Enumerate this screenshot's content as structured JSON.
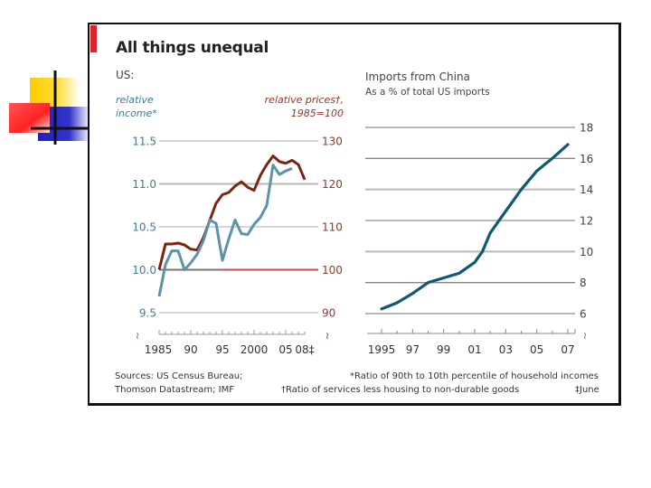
{
  "header": {
    "title": "All things unequal"
  },
  "left_panel": {
    "region_label": "US:",
    "left_axis_title_line1": "relative",
    "left_axis_title_line2": "income*",
    "right_axis_title_line1": "relative prices†,",
    "right_axis_title_line2": "1985=100"
  },
  "right_panel": {
    "title": "Imports from China",
    "subtitle": "As a % of total US imports"
  },
  "footer": {
    "sources_line1": "Sources: US Census Bureau;",
    "sources_line2": "Thomson Datastream; IMF",
    "note1": "*Ratio of 90th to 10th percentile of household incomes",
    "note2": "†Ratio of services less housing to non-durable goods",
    "note3": "‡June"
  },
  "colors": {
    "income": "#5b93a8",
    "prices": "#7a2514",
    "imports": "#0e5a72",
    "baseline_red": "#d9444c",
    "brand_red": "#e0202a"
  },
  "chart_data": [
    {
      "type": "line",
      "title": "US: relative income and relative prices",
      "xlabel": "",
      "x_ticks": [
        "1985",
        "90",
        "95",
        "2000",
        "05",
        "08‡"
      ],
      "x_tick_years": [
        1985,
        1990,
        1995,
        2000,
        2005,
        2008
      ],
      "xlim": [
        1985,
        2008
      ],
      "y_left": {
        "label": "relative income*",
        "ticks": [
          "9.5",
          "10.0",
          "10.5",
          "11.0",
          "11.5"
        ],
        "lim": [
          9.5,
          11.5
        ]
      },
      "y_right": {
        "label": "relative prices†, 1985=100",
        "ticks": [
          "90",
          "100",
          "110",
          "120",
          "130"
        ],
        "lim": [
          90,
          130
        ]
      },
      "grid": true,
      "reference_line": {
        "axis": "right",
        "value": 100,
        "from_year": 1995,
        "to_year": 2008
      },
      "series": [
        {
          "name": "relative income*",
          "axis": "left",
          "x": [
            1985,
            1986,
            1987,
            1988,
            1989,
            1990,
            1991,
            1992,
            1993,
            1994,
            1995,
            1996,
            1997,
            1998,
            1999,
            2000,
            2001,
            2002,
            2003,
            2004,
            2005,
            2006
          ],
          "values": [
            9.69,
            10.06,
            10.22,
            10.22,
            10.0,
            10.08,
            10.18,
            10.34,
            10.58,
            10.54,
            10.11,
            10.36,
            10.58,
            10.42,
            10.41,
            10.53,
            10.61,
            10.75,
            11.22,
            11.11,
            11.15,
            11.18
          ]
        },
        {
          "name": "relative prices†",
          "axis": "right",
          "x": [
            1985,
            1986,
            1987,
            1988,
            1989,
            1990,
            1991,
            1992,
            1993,
            1994,
            1995,
            1996,
            1997,
            1998,
            1999,
            2000,
            2001,
            2002,
            2003,
            2004,
            2005,
            2006,
            2007,
            2008
          ],
          "values": [
            100,
            106,
            106,
            106.2,
            105.8,
            104.8,
            104.6,
            107.5,
            111.5,
            115.5,
            117.5,
            118,
            119.5,
            120.5,
            119.2,
            118.5,
            122,
            124.5,
            126.5,
            125.2,
            124.8,
            125.5,
            124.5,
            121
          ]
        }
      ]
    },
    {
      "type": "line",
      "title": "Imports from China",
      "subtitle": "As a % of total US imports",
      "x_ticks": [
        "1995",
        "97",
        "99",
        "01",
        "03",
        "05",
        "07"
      ],
      "x_tick_years": [
        1995,
        1997,
        1999,
        2001,
        2003,
        2005,
        2007
      ],
      "xlim": [
        1994.5,
        2007.5
      ],
      "y_ticks": [
        "6",
        "8",
        "10",
        "12",
        "14",
        "16",
        "18"
      ],
      "ylim": [
        6,
        18
      ],
      "grid": true,
      "series": [
        {
          "name": "Imports from China (% of US imports)",
          "x": [
            1995,
            1996,
            1997,
            1998,
            1999,
            2000,
            2001,
            2001.5,
            2002,
            2003,
            2004,
            2005,
            2006,
            2007
          ],
          "values": [
            6.3,
            6.7,
            7.3,
            8.0,
            8.3,
            8.6,
            9.3,
            10.0,
            11.2,
            12.6,
            14.0,
            15.2,
            16.0,
            16.9
          ]
        }
      ]
    }
  ]
}
